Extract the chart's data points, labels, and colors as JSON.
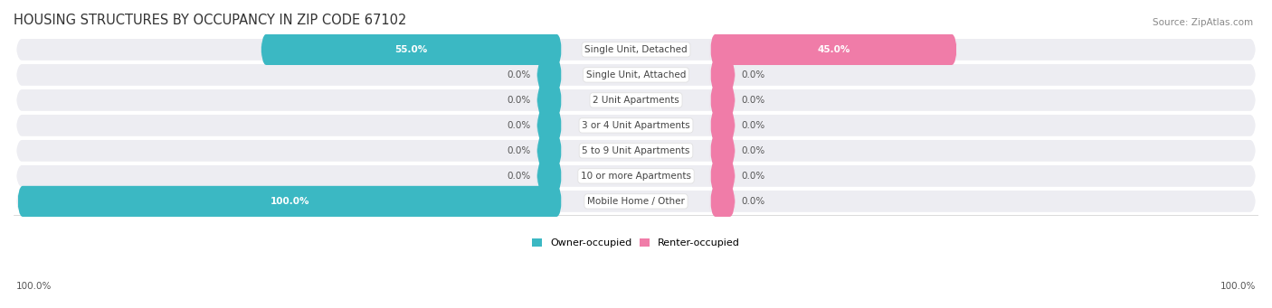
{
  "title": "HOUSING STRUCTURES BY OCCUPANCY IN ZIP CODE 67102",
  "source": "Source: ZipAtlas.com",
  "categories": [
    "Single Unit, Detached",
    "Single Unit, Attached",
    "2 Unit Apartments",
    "3 or 4 Unit Apartments",
    "5 to 9 Unit Apartments",
    "10 or more Apartments",
    "Mobile Home / Other"
  ],
  "owner_values": [
    55.0,
    0.0,
    0.0,
    0.0,
    0.0,
    0.0,
    100.0
  ],
  "renter_values": [
    45.0,
    0.0,
    0.0,
    0.0,
    0.0,
    0.0,
    0.0
  ],
  "owner_color": "#3bb8c3",
  "renter_color": "#f07ca8",
  "row_bg_color": "#ededf2",
  "row_bg_even": "#e8e8ef",
  "title_fontsize": 10.5,
  "label_fontsize": 7.5,
  "value_fontsize": 7.5,
  "source_fontsize": 7.5,
  "legend_fontsize": 8.0,
  "max_value": 100.0,
  "zero_stub": 4.0
}
